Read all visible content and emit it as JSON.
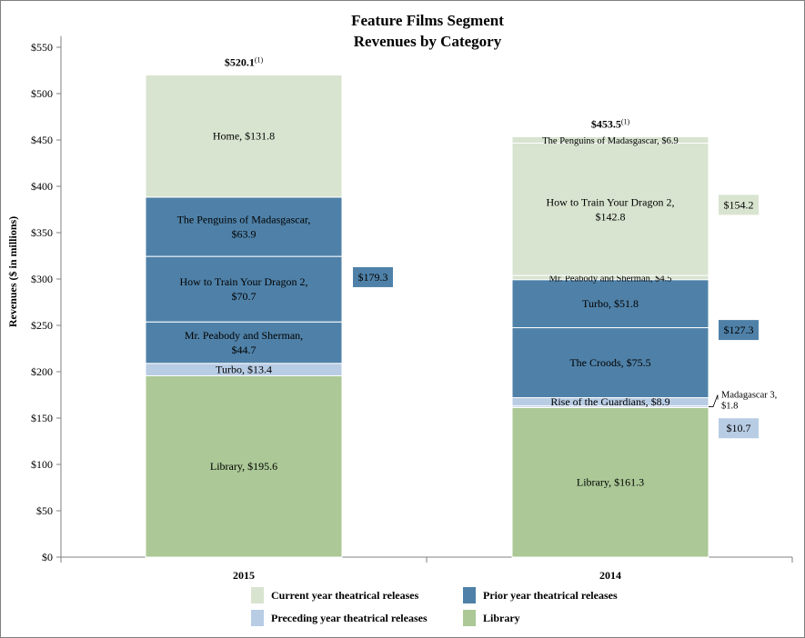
{
  "colors": {
    "current": "#d9e4d0",
    "prior": "#4f81a8",
    "preceding": "#b8cce4",
    "library": "#abc896",
    "axis": "#808080",
    "divider": "#ffffff"
  },
  "chart_data": {
    "type": "bar",
    "stacked": true,
    "title": "Feature Films Segment",
    "subtitle": "Revenues by Category",
    "ylabel": "Revenues  ($ in millions)",
    "ylim": [
      0,
      560
    ],
    "yticks": [
      0,
      50,
      100,
      150,
      200,
      250,
      300,
      350,
      400,
      450,
      500,
      550
    ],
    "ytick_labels": [
      "$0",
      "$50",
      "$100",
      "$150",
      "$200",
      "$250",
      "$300",
      "$350",
      "$400",
      "$450",
      "$500",
      "$550"
    ],
    "grid": false,
    "legend_position": "bottom",
    "categories": [
      "2015",
      "2014"
    ],
    "legend": [
      {
        "label": "Current year theatrical releases",
        "color_key": "current"
      },
      {
        "label": "Prior year theatrical releases",
        "color_key": "prior"
      },
      {
        "label": "Preceding year theatrical releases",
        "color_key": "preceding"
      },
      {
        "label": "Library",
        "color_key": "library"
      }
    ],
    "bars": [
      {
        "category": "2015",
        "total_label": "$520.1",
        "total_footnote": "(1)",
        "total": 520.1,
        "segments": [
          {
            "category_type": "library",
            "value": 195.6,
            "lines": [
              "Library,  $195.6"
            ]
          },
          {
            "category_type": "preceding",
            "value": 13.4,
            "lines": [
              "Turbo,  $13.4"
            ]
          },
          {
            "category_type": "prior",
            "value": 44.7,
            "lines": [
              "Mr. Peabody and Sherman,",
              "$44.7"
            ]
          },
          {
            "category_type": "prior",
            "value": 70.7,
            "lines": [
              "How to Train Your Dragon 2,",
              "$70.7"
            ]
          },
          {
            "category_type": "prior",
            "value": 63.9,
            "lines": [
              "The Penguins of Madasgascar,",
              "$63.9"
            ]
          },
          {
            "category_type": "current",
            "value": 131.8,
            "lines": [
              "Home,  $131.8"
            ]
          }
        ],
        "side_labels": [
          {
            "text": "$179.3",
            "value": 179.3,
            "color_key": "prior",
            "center_at": 302
          }
        ]
      },
      {
        "category": "2014",
        "total_label": "$453.5",
        "total_footnote": "(1)",
        "total": 453.5,
        "segments": [
          {
            "category_type": "library",
            "value": 161.3,
            "lines": [
              "Library,  $161.3"
            ]
          },
          {
            "category_type": "preceding",
            "value": 1.8,
            "lines": []
          },
          {
            "category_type": "preceding",
            "value": 8.9,
            "lines": [
              "Rise of the Guardians,  $8.9"
            ]
          },
          {
            "category_type": "prior",
            "value": 75.5,
            "lines": [
              "The Croods,  $75.5"
            ]
          },
          {
            "category_type": "prior",
            "value": 51.8,
            "lines": [
              "Turbo,  $51.8"
            ]
          },
          {
            "category_type": "current",
            "value": 4.5,
            "lines": [
              "Mr. Peabody and Sherman,  $4.5"
            ],
            "small": true
          },
          {
            "category_type": "current",
            "value": 142.8,
            "lines": [
              "How to Train Your Dragon 2,",
              "$142.8"
            ]
          },
          {
            "category_type": "current",
            "value": 6.9,
            "lines": [
              "The Penguins of Madasgascar,  $6.9"
            ],
            "small": true
          }
        ],
        "side_labels": [
          {
            "text": "$154.2",
            "value": 154.2,
            "color_key": "current",
            "center_at": 380
          },
          {
            "text": "$127.3",
            "value": 127.3,
            "color_key": "prior",
            "center_at": 245
          },
          {
            "text": "$10.7",
            "value": 10.7,
            "color_key": "preceding",
            "center_at": 139
          }
        ],
        "callout": {
          "lines": [
            "Madagascar 3,",
            "$1.8"
          ],
          "value": 1.8
        }
      }
    ]
  }
}
